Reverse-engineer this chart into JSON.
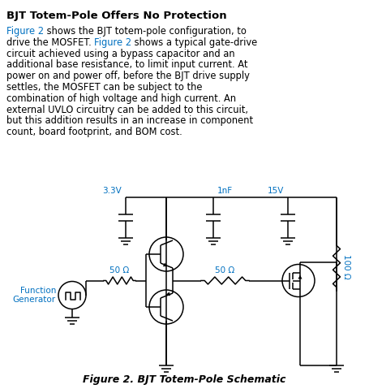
{
  "title": "BJT Totem-Pole Offers No Protection",
  "figure_caption": "Figure 2. BJT Totem-Pole Schematic",
  "label_3v3": "3.3V",
  "label_1nf": "1nF",
  "label_15v": "15V",
  "label_100ohm": "100 Ω",
  "label_50ohm_left": "50 Ω",
  "label_50ohm_right": "50 Ω",
  "label_fg": "Function\nGenerator",
  "blue": "#0070C0",
  "black": "#000000",
  "white": "#ffffff",
  "body_lines": [
    [
      [
        "​Figure 2",
        "blue"
      ],
      [
        " shows the BJT totem-pole configuration, to",
        "black"
      ]
    ],
    [
      [
        "drive the MOSFET. ",
        "black"
      ],
      [
        "Figure 2",
        "blue"
      ],
      [
        " shows a typical gate-drive",
        "black"
      ]
    ],
    [
      [
        "circuit achieved using a bypass capacitor and an",
        "black"
      ]
    ],
    [
      [
        "additional base resistance, to limit input current. At",
        "black"
      ]
    ],
    [
      [
        "power on and power off, before the BJT drive supply",
        "black"
      ]
    ],
    [
      [
        "settles, the MOSFET can be subject to the",
        "black"
      ]
    ],
    [
      [
        "combination of high voltage and high current. An",
        "black"
      ]
    ],
    [
      [
        "external UVLO circuitry can be added to this circuit,",
        "black"
      ]
    ],
    [
      [
        "but this addition results in an increase in component",
        "black"
      ]
    ],
    [
      [
        "count, board footprint, and BOM cost.",
        "black"
      ]
    ]
  ]
}
